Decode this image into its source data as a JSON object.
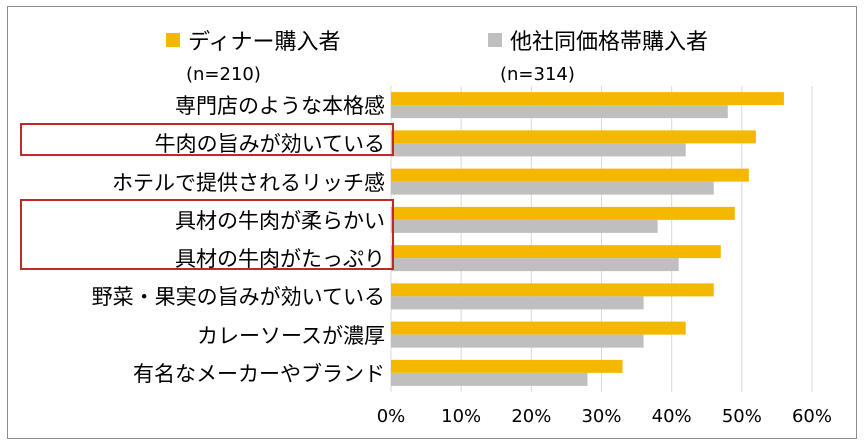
{
  "chart_data": {
    "type": "bar",
    "orientation": "horizontal",
    "categories": [
      "専門店のような本格感",
      "牛肉の旨みが効いている",
      "ホテルで提供されるリッチ感",
      "具材の牛肉が柔らかい",
      "具材の牛肉がたっぷり",
      "野菜・果実の旨みが効いている",
      "カレーソースが濃厚",
      "有名なメーカーやブランド"
    ],
    "series": [
      {
        "name": "ディナー購入者",
        "n": "(n=210)",
        "color": "#f5b800",
        "values": [
          0.56,
          0.52,
          0.51,
          0.49,
          0.47,
          0.46,
          0.42,
          0.33
        ]
      },
      {
        "name": "他社同価格帯購入者",
        "n": "(n=314)",
        "color": "#bfbfbf",
        "values": [
          0.48,
          0.42,
          0.46,
          0.38,
          0.41,
          0.36,
          0.36,
          0.28
        ]
      }
    ],
    "xlim": [
      0,
      0.6
    ],
    "xticks": [
      "0%",
      "10%",
      "20%",
      "30%",
      "40%",
      "50%",
      "60%"
    ],
    "grid": "vertical",
    "legend": "top",
    "highlighted_categories": [
      "牛肉の旨みが効いている",
      "具材の牛肉が柔らかい",
      "具材の牛肉がたっぷり"
    ],
    "highlight_color": "#c0282a"
  }
}
